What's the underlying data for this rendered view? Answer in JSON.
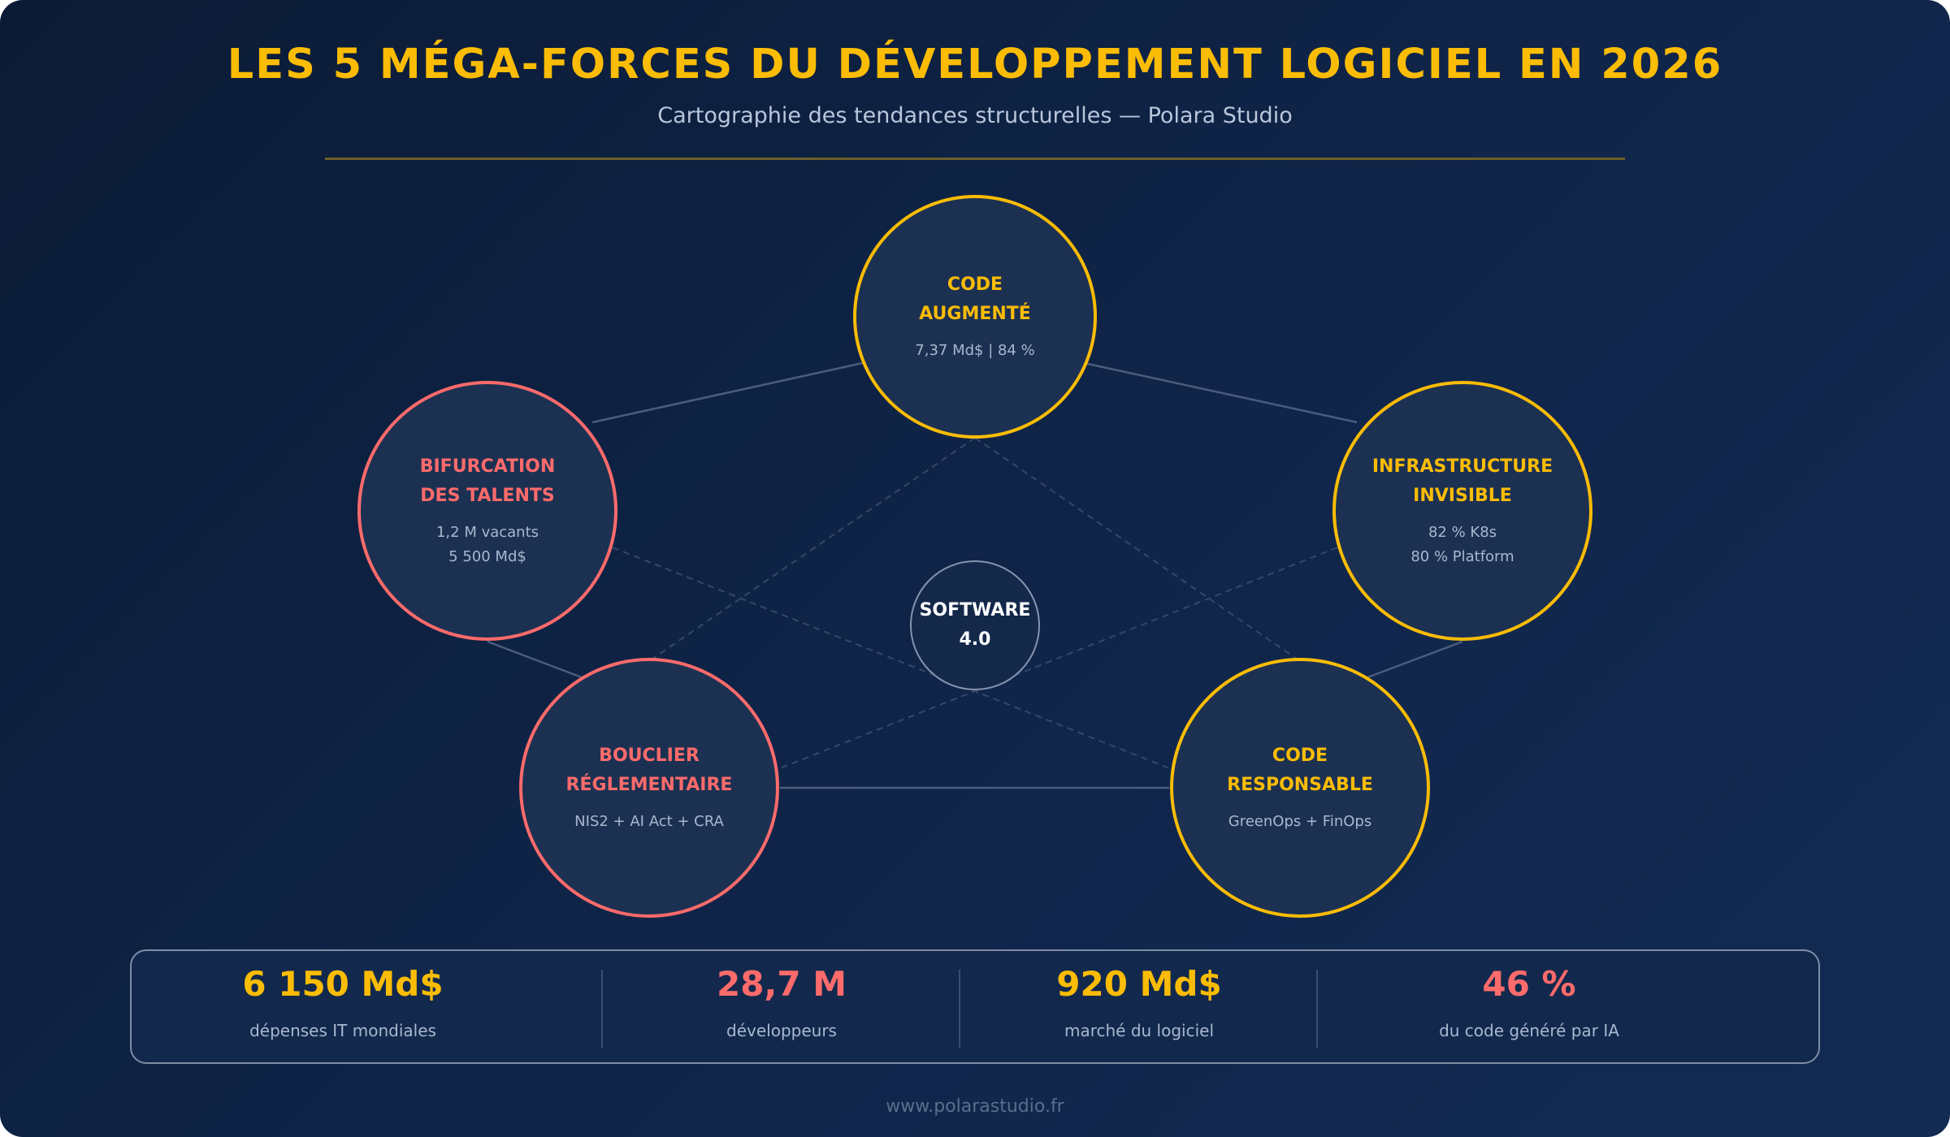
{
  "header": {
    "title": "LES 5 MÉGA-FORCES DU DÉVELOPPEMENT LOGICIEL EN 2026",
    "subtitle": "Cartographie des tendances structurelles — Polara Studio"
  },
  "colors": {
    "gold": "#fbbc05",
    "coral": "#ff6b6b",
    "background": "#0f2244",
    "node_fill": "#1c3152"
  },
  "center": {
    "line1": "SOFTWARE",
    "line2": "4.0"
  },
  "forces": [
    {
      "title1": "CODE",
      "title2": "AUGMENTÉ",
      "detail1": "7,37 Md$ | 84 %",
      "detail2": "",
      "color": "gold"
    },
    {
      "title1": "BIFURCATION",
      "title2": "DES TALENTS",
      "detail1": "1,2 M vacants",
      "detail2": "5 500 Md$",
      "color": "coral"
    },
    {
      "title1": "INFRASTRUCTURE",
      "title2": "INVISIBLE",
      "detail1": "82 % K8s",
      "detail2": "80 % Platform",
      "color": "gold"
    },
    {
      "title1": "BOUCLIER",
      "title2": "RÉGLEMENTAIRE",
      "detail1": "NIS2 + AI Act + CRA",
      "detail2": "",
      "color": "coral"
    },
    {
      "title1": "CODE",
      "title2": "RESPONSABLE",
      "detail1": "GreenOps + FinOps",
      "detail2": "",
      "color": "gold"
    }
  ],
  "stats": [
    {
      "value": "6 150 Md$",
      "label": "dépenses IT mondiales",
      "color": "gold"
    },
    {
      "value": "28,7 M",
      "label": "développeurs",
      "color": "coral"
    },
    {
      "value": "920 Md$",
      "label": "marché du logiciel",
      "color": "gold"
    },
    {
      "value": "46 %",
      "label": "du code généré par IA",
      "color": "coral"
    }
  ],
  "footer": "www.polarastudio.fr"
}
